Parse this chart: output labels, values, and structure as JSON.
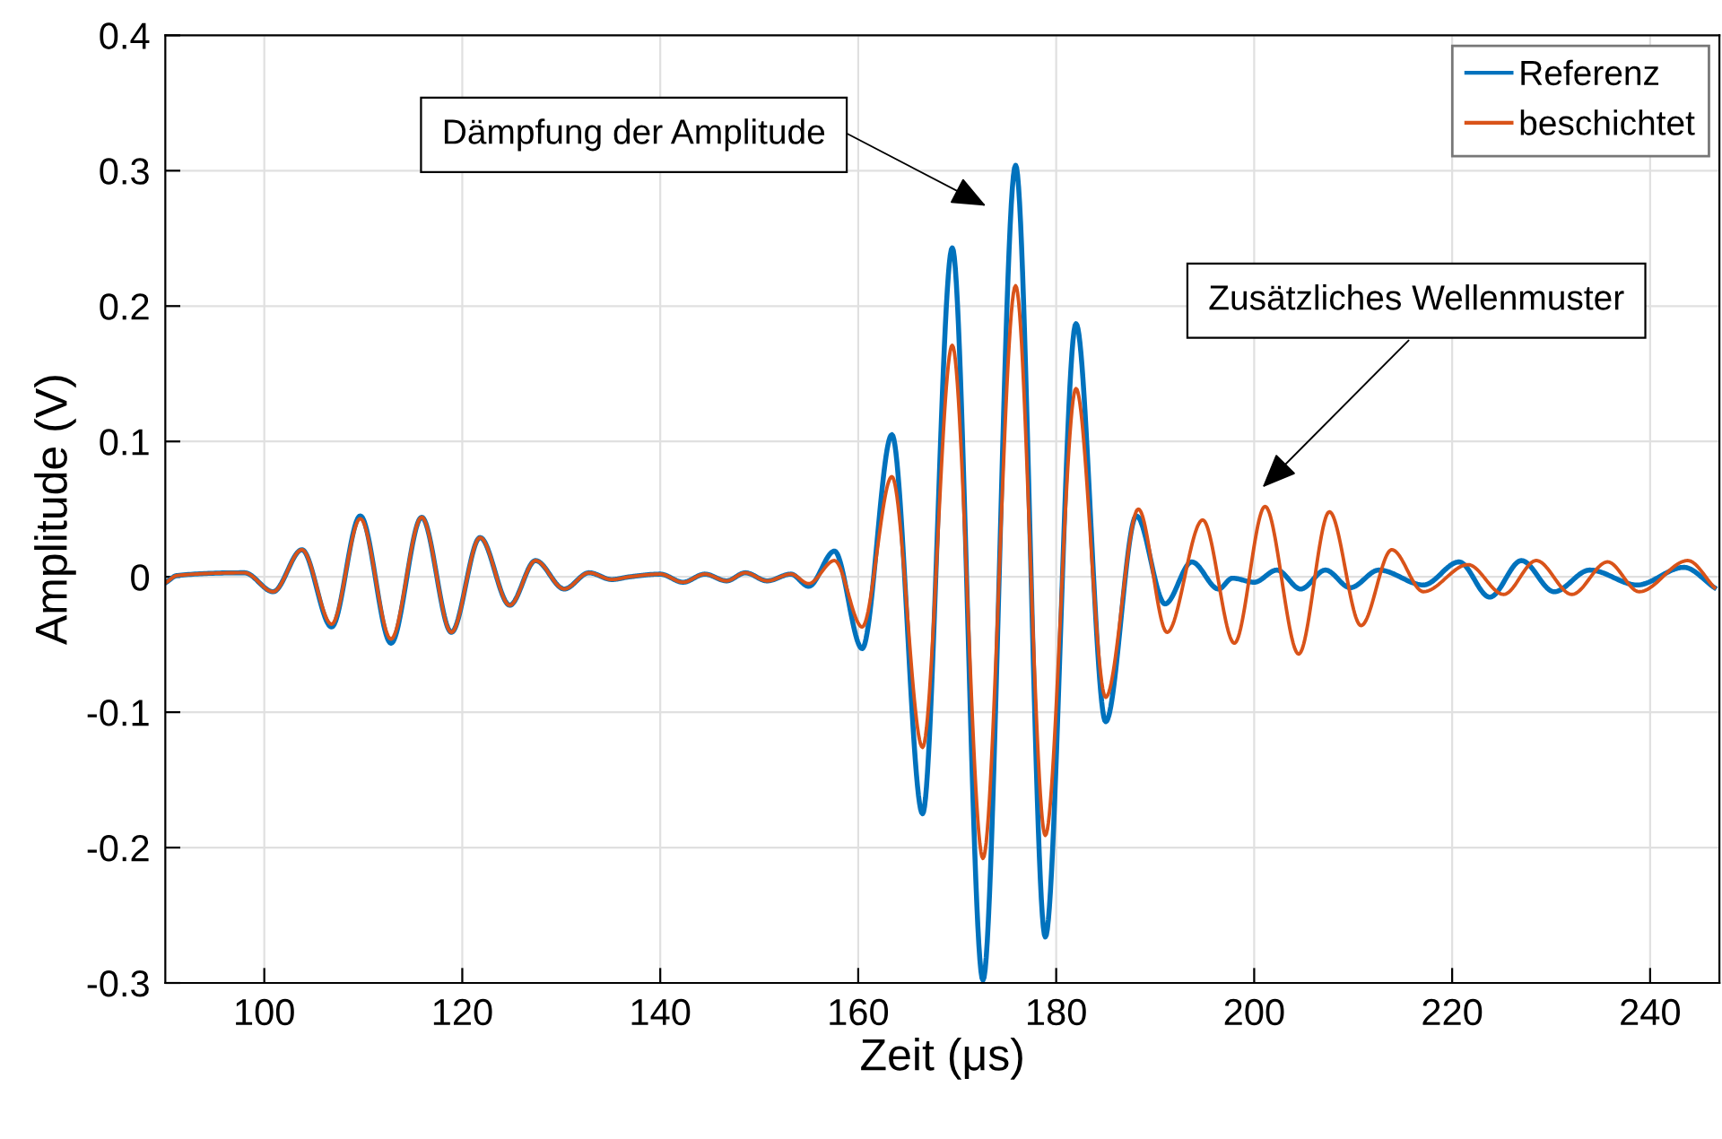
{
  "chart_data": {
    "type": "line",
    "xlabel": "Zeit (μs)",
    "ylabel": "Amplitude (V)",
    "xlim": [
      90,
      247
    ],
    "xticks": [
      100,
      120,
      140,
      160,
      180,
      200,
      220,
      240
    ],
    "ylim": [
      -0.3,
      0.4
    ],
    "yticks": [
      -0.3,
      -0.2,
      -0.1,
      0,
      0.1,
      0.2,
      0.3,
      0.4
    ],
    "grid": true,
    "legend": "top right",
    "marker": "none",
    "line_style": "solid",
    "annotations": [
      "Dämpfung der Amplitude",
      "Zusätzliches Wellenmuster"
    ],
    "series": [
      {
        "name": "Referenz",
        "color": "#0072bd",
        "x": [
          90.1,
          91.2,
          98.0,
          100.9,
          103.8,
          106.8,
          109.7,
          112.8,
          115.9,
          118.9,
          121.8,
          124.8,
          127.4,
          130.3,
          132.8,
          135.1,
          136.9,
          140.0,
          142.3,
          144.5,
          146.7,
          148.6,
          150.8,
          153.2,
          155.0,
          157.6,
          160.4,
          163.4,
          166.5,
          169.5,
          172.6,
          175.9,
          178.9,
          182.0,
          185.0,
          188.1,
          191.0,
          193.7,
          196.4,
          197.8,
          200.0,
          202.3,
          204.7,
          207.2,
          209.7,
          212.6,
          217.1,
          220.7,
          223.8,
          227.0,
          230.3,
          233.9,
          238.7,
          243.4,
          246.5
        ],
        "values": [
          -0.004,
          0.001,
          0.003,
          -0.011,
          0.02,
          -0.037,
          0.045,
          -0.049,
          0.044,
          -0.041,
          0.029,
          -0.021,
          0.012,
          -0.009,
          0.003,
          -0.002,
          0.0,
          0.002,
          -0.004,
          0.002,
          -0.003,
          0.003,
          -0.003,
          0.002,
          -0.007,
          0.019,
          -0.053,
          0.105,
          -0.175,
          0.243,
          -0.298,
          0.304,
          -0.266,
          0.187,
          -0.107,
          0.045,
          -0.02,
          0.011,
          -0.009,
          -0.001,
          -0.004,
          0.005,
          -0.009,
          0.005,
          -0.008,
          0.005,
          -0.006,
          0.011,
          -0.015,
          0.012,
          -0.011,
          0.005,
          -0.006,
          0.007,
          -0.008
        ]
      },
      {
        "name": "beschichtet",
        "color": "#d95319",
        "x": [
          90.1,
          91.2,
          98.0,
          100.9,
          103.8,
          106.8,
          109.7,
          112.8,
          115.9,
          118.9,
          121.8,
          124.8,
          127.4,
          130.3,
          132.8,
          135.1,
          136.9,
          140.0,
          142.3,
          144.5,
          146.7,
          148.6,
          150.8,
          153.2,
          155.0,
          157.6,
          160.4,
          163.4,
          166.5,
          169.5,
          172.6,
          175.9,
          178.9,
          182.0,
          185.0,
          188.3,
          191.2,
          194.8,
          198.0,
          201.1,
          204.5,
          207.6,
          210.8,
          213.9,
          217.1,
          221.6,
          225.2,
          228.5,
          232.1,
          235.7,
          238.9,
          243.8,
          246.5
        ],
        "values": [
          -0.004,
          0.001,
          0.003,
          -0.011,
          0.02,
          -0.035,
          0.043,
          -0.046,
          0.044,
          -0.041,
          0.029,
          -0.021,
          0.012,
          -0.009,
          0.003,
          -0.002,
          0.0,
          0.002,
          -0.004,
          0.002,
          -0.003,
          0.003,
          -0.003,
          0.002,
          -0.005,
          0.012,
          -0.037,
          0.074,
          -0.126,
          0.171,
          -0.208,
          0.215,
          -0.191,
          0.139,
          -0.089,
          0.05,
          -0.041,
          0.042,
          -0.049,
          0.052,
          -0.057,
          0.048,
          -0.036,
          0.02,
          -0.011,
          0.009,
          -0.013,
          0.012,
          -0.013,
          0.011,
          -0.011,
          0.012,
          -0.008
        ]
      }
    ]
  }
}
